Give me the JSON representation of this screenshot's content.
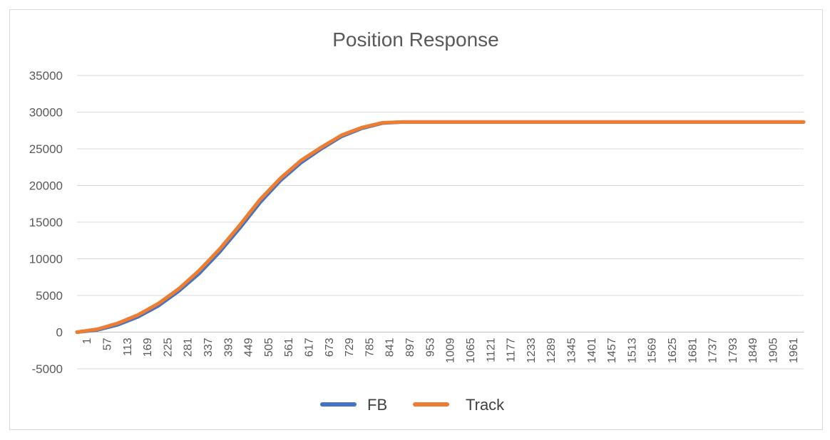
{
  "chart_data": {
    "type": "line",
    "title": "Position Response",
    "xlabel": "",
    "ylabel": "",
    "ylim": [
      -5000,
      35000
    ],
    "y_ticks": [
      35000,
      30000,
      25000,
      20000,
      15000,
      10000,
      5000,
      0,
      -5000
    ],
    "y_tick_labels": [
      "35000",
      "30000",
      "25000",
      "20000",
      "15000",
      "10000",
      "5000",
      "0",
      "-5000"
    ],
    "xlim": [
      1,
      2000
    ],
    "x_tick_labels": [
      "1",
      "57",
      "113",
      "169",
      "225",
      "281",
      "337",
      "393",
      "449",
      "505",
      "561",
      "617",
      "673",
      "729",
      "785",
      "841",
      "897",
      "953",
      "1009",
      "1065",
      "1121",
      "1177",
      "1233",
      "1289",
      "1345",
      "1401",
      "1457",
      "1513",
      "1569",
      "1625",
      "1681",
      "1737",
      "1793",
      "1849",
      "1905",
      "1961"
    ],
    "grid": true,
    "legend_position": "bottom",
    "series": [
      {
        "name": "FB",
        "color": "#4472c4",
        "x": [
          1,
          57,
          113,
          169,
          225,
          281,
          337,
          393,
          449,
          505,
          561,
          617,
          673,
          729,
          785,
          841,
          897,
          953,
          1009,
          1121,
          1233,
          1345,
          1457,
          1569,
          1681,
          1793,
          1905,
          2000
        ],
        "values": [
          0,
          300,
          1000,
          2100,
          3600,
          5600,
          8000,
          10900,
          14200,
          17700,
          20700,
          23100,
          25000,
          26700,
          27800,
          28500,
          28650,
          28650,
          28650,
          28650,
          28650,
          28650,
          28650,
          28650,
          28650,
          28650,
          28650,
          28650
        ]
      },
      {
        "name": "Track",
        "color": "#ed7d31",
        "x": [
          1,
          57,
          113,
          169,
          225,
          281,
          337,
          393,
          449,
          505,
          561,
          617,
          673,
          729,
          785,
          841,
          897,
          953,
          1009,
          1121,
          1233,
          1345,
          1457,
          1569,
          1681,
          1793,
          1905,
          2000
        ],
        "values": [
          0,
          400,
          1200,
          2350,
          3900,
          5900,
          8400,
          11300,
          14600,
          18100,
          21000,
          23400,
          25200,
          26850,
          27900,
          28550,
          28650,
          28650,
          28650,
          28650,
          28650,
          28650,
          28650,
          28650,
          28650,
          28650,
          28650,
          28650
        ]
      }
    ]
  }
}
